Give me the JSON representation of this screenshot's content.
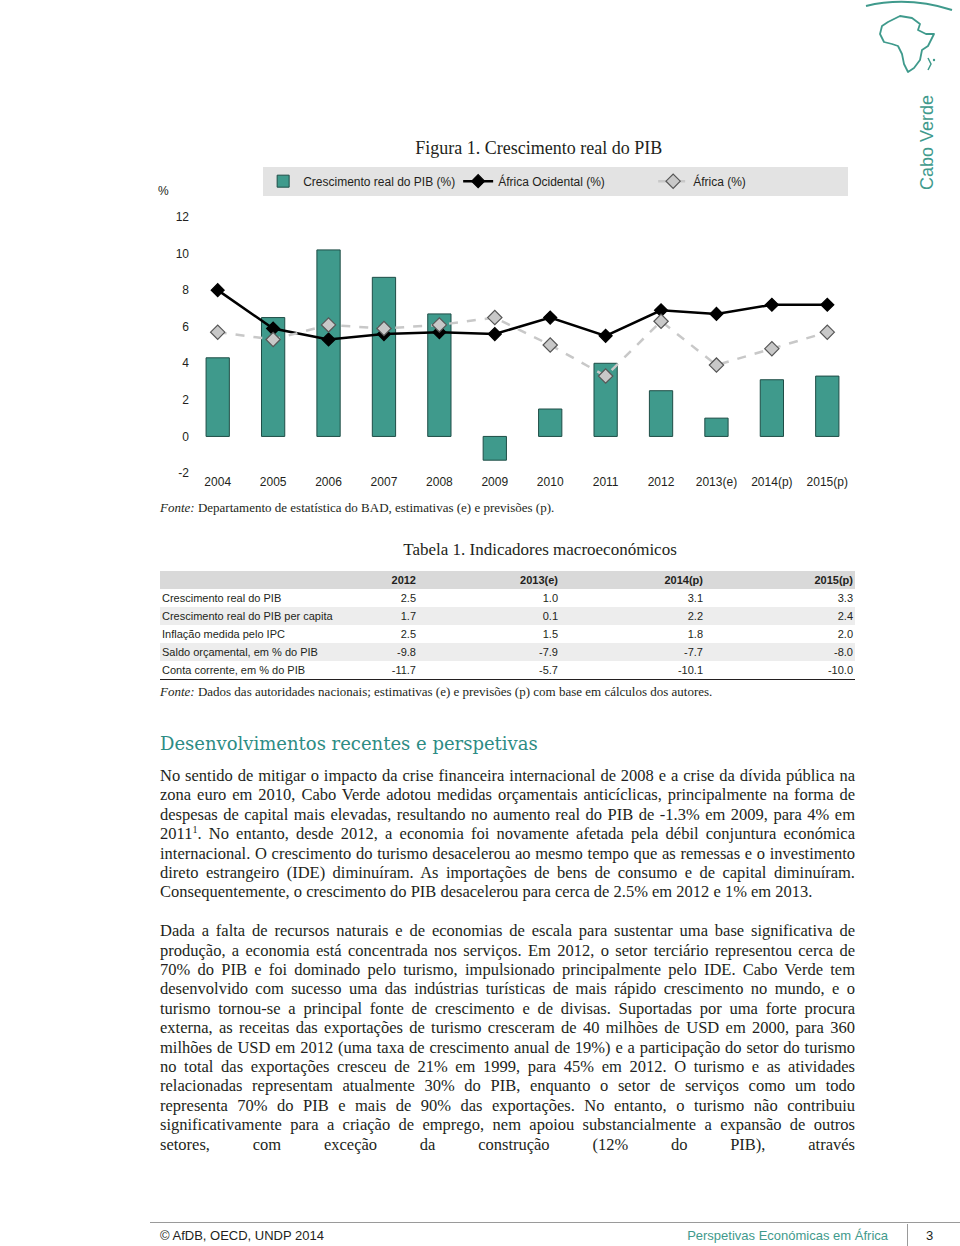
{
  "header": {
    "country": "Cabo Verde"
  },
  "chart_data": {
    "type": "bar",
    "title": "Figura 1. Crescimento real do PIB",
    "y_label": "%",
    "categories": [
      "2004",
      "2005",
      "2006",
      "2007",
      "2008",
      "2009",
      "2010",
      "2011",
      "2012",
      "2013(e)",
      "2014(p)",
      "2015(p)"
    ],
    "series": [
      {
        "name": "Crescimento real do PIB (%)",
        "type": "bar",
        "color": "#3f9a8c",
        "values": [
          4.3,
          6.5,
          10.2,
          8.7,
          6.7,
          -1.3,
          1.5,
          4.0,
          2.5,
          1.0,
          3.1,
          3.3
        ]
      },
      {
        "name": "África Ocidental (%)",
        "type": "line",
        "color": "#000000",
        "marker": "diamond",
        "line_style": "solid",
        "values": [
          8.0,
          5.9,
          5.3,
          5.6,
          5.7,
          5.6,
          6.5,
          5.5,
          6.9,
          6.7,
          7.2,
          7.2
        ]
      },
      {
        "name": "África (%)",
        "type": "line",
        "color": "#c8c8c8",
        "marker": "diamond",
        "line_style": "dash",
        "values": [
          5.7,
          5.3,
          6.1,
          5.9,
          6.1,
          6.5,
          5.0,
          3.3,
          6.3,
          3.9,
          4.8,
          5.7
        ]
      }
    ],
    "ylim": [
      -2,
      12
    ],
    "yticks": [
      -2,
      0,
      2,
      4,
      6,
      8,
      10,
      12
    ],
    "grid": false,
    "legend": "top"
  },
  "figure_note": {
    "label": "Fonte:",
    "text": " Departamento de estatística do BAD, estimativas (e) e previsões (p)."
  },
  "table": {
    "title": "Tabela 1. Indicadores macroeconómicos",
    "header": [
      "",
      "2012",
      "2013(e)",
      "2014(p)",
      "2015(p)"
    ],
    "rows": [
      [
        "Crescimento real do PIB",
        "2.5",
        "1.0",
        "3.1",
        "3.3"
      ],
      [
        "Crescimento real do PIB per capita",
        "1.7",
        "0.1",
        "2.2",
        "2.4"
      ],
      [
        "Inflação medida pelo IPC",
        "2.5",
        "1.5",
        "1.8",
        "2.0"
      ],
      [
        "Saldo orçamental, em % do PIB",
        "-9.8",
        "-7.9",
        "-7.7",
        "-8.0"
      ],
      [
        "Conta corrente, em % do PIB",
        "-11.7",
        "-5.7",
        "-10.1",
        "-10.0"
      ]
    ],
    "note": {
      "label": "Fonte:",
      "text": " Dados das autoridades nacionais; estimativas (e) e previsões (p) com base em cálculos dos autores."
    }
  },
  "section": {
    "heading": "Desenvolvimentos recentes e perspetivas",
    "paragraphs": [
      [
        {
          "text": "No sentido de mitigar o impacto da crise financeira internacional de 2008 e a crise da dívida pública na zona euro em 2010, Cabo Verde adotou medidas orçamentais anticíclicas, principalmente na forma de despesas de capital mais elevadas, resultando no aumento real do PIB de -1.3% em 2009, para 4% em 2011"
        },
        {
          "sup": "1"
        },
        {
          "text": ". No entanto, desde 2012, a economia foi novamente afetada pela débil conjuntura económica internacional. O crescimento do turismo desacelerou ao mesmo tempo que as remessas e o investimento direto estrangeiro (IDE) diminuíram. As importações de bens de consumo e de capital diminuíram. Consequentemente, o crescimento do PIB desacelerou para cerca de 2.5% em 2012 e 1% em 2013."
        }
      ],
      [
        {
          "text": "Dada a falta de recursos naturais e de economias de escala para sustentar uma base significativa de produção, a economia está concentrada nos serviços. Em 2012, o setor terciário representou cerca de 70% do PIB e foi dominado pelo turismo, impulsionado principalmente pelo IDE. Cabo Verde tem desenvolvido com sucesso uma das indústrias turísticas de mais rápido crescimento no mundo, e o turismo tornou-se a principal fonte de crescimento e de divisas. Suportadas por uma forte procura externa, as receitas das exportações de turismo cresceram de 40 milhões de USD em 2000, para 360 milhões de USD em 2012 (uma taxa de crescimento anual de 19%) e a participação do setor do turismo no total das exportações cresceu de 21% em 1999, para 45% em 2012. O turismo e as atividades relacionadas representam atualmente 30% do PIB, enquanto o setor de serviços como um todo representa 70% do PIB e mais de 90% das exportações. No entanto, o turismo não contribuiu significativamente para a criação de emprego, nem apoiou substancialmente a expansão de outros setores, com exceção da construção (12% do PIB), através"
        }
      ]
    ]
  },
  "footer": {
    "copyright": "© AfDB, OECD, UNDP 2014",
    "publication": "Perspetivas Económicas em África",
    "page": "3"
  }
}
